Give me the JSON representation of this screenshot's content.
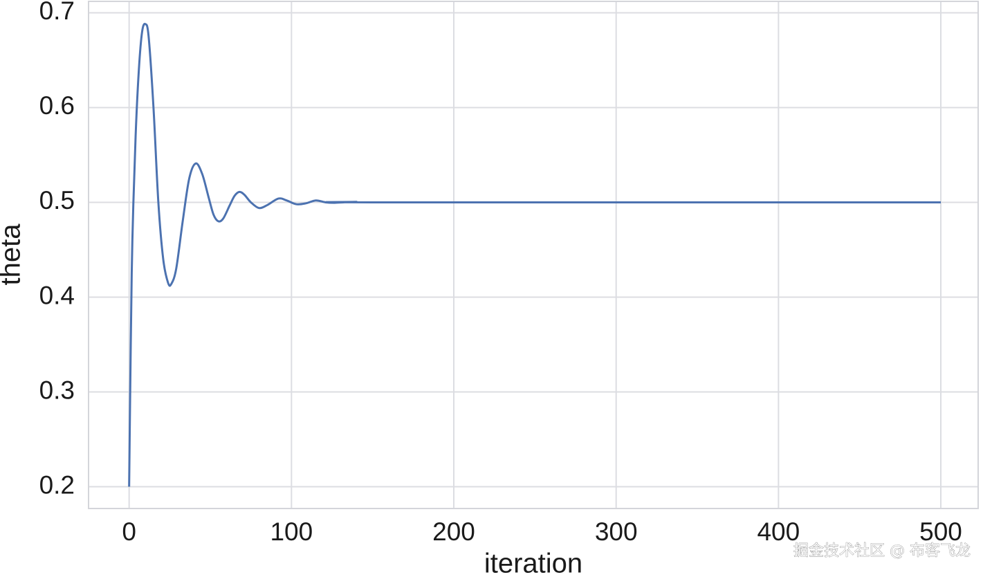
{
  "chart_data": {
    "type": "line",
    "x_label": "iteration",
    "y_label": "theta",
    "watermark": "掘金技术社区 @ 布客飞龙",
    "x": [
      0,
      1,
      2,
      4,
      6,
      8,
      10,
      12,
      15,
      18,
      21,
      24,
      26,
      29,
      33,
      37,
      41,
      45,
      49,
      52,
      55,
      58,
      62,
      65,
      68,
      71,
      75,
      80,
      85,
      92,
      97,
      103,
      109,
      115,
      121,
      126,
      132,
      140,
      150,
      500
    ],
    "series": [
      {
        "name": "theta",
        "color": "#4c72b0",
        "values": [
          0.2,
          0.35,
          0.46,
          0.57,
          0.64,
          0.68,
          0.688,
          0.675,
          0.6,
          0.5,
          0.44,
          0.415,
          0.414,
          0.43,
          0.48,
          0.525,
          0.541,
          0.53,
          0.505,
          0.487,
          0.48,
          0.483,
          0.497,
          0.507,
          0.511,
          0.508,
          0.5,
          0.494,
          0.497,
          0.504,
          0.502,
          0.498,
          0.499,
          0.502,
          0.5,
          0.4995,
          0.5,
          0.5005,
          0.5,
          0.5
        ]
      }
    ],
    "xlim": [
      -25,
      523
    ],
    "ylim": [
      0.177,
      0.712
    ],
    "xticks": [
      0,
      100,
      200,
      300,
      400,
      500
    ],
    "yticks": [
      0.2,
      0.3,
      0.4,
      0.5,
      0.6,
      0.7
    ],
    "grid": true
  }
}
